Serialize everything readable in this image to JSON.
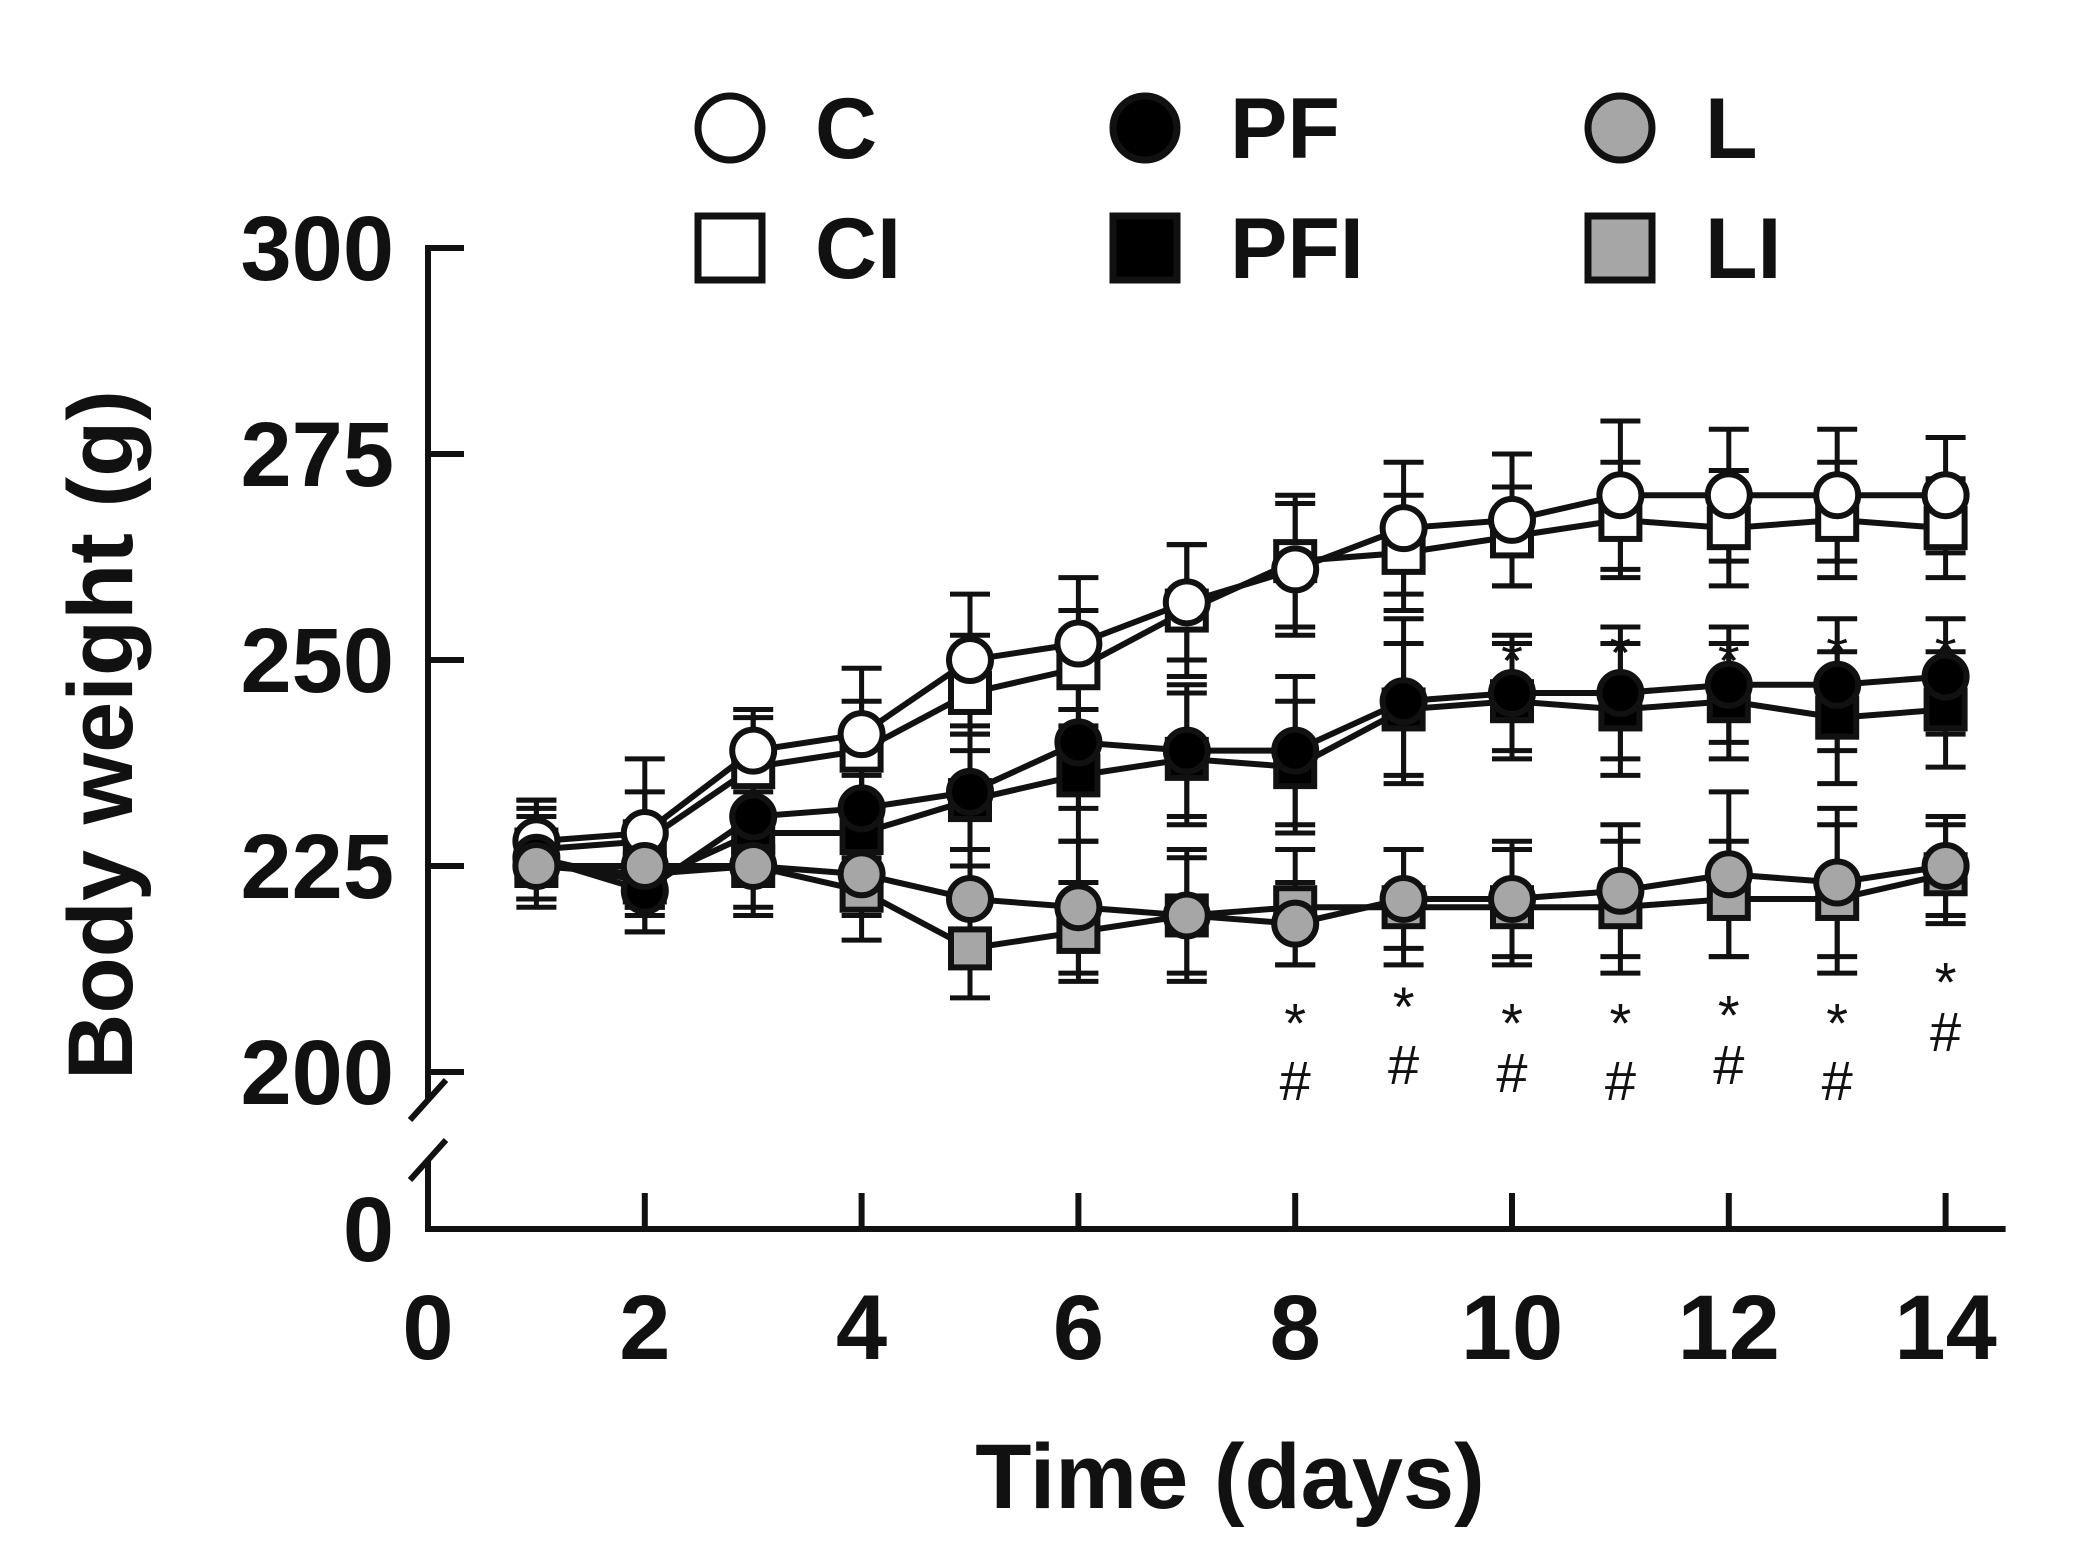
{
  "chart_data": {
    "type": "line",
    "title": "",
    "xlabel": "Time (days)",
    "ylabel": "Body weight (g)",
    "xlim": [
      0,
      14
    ],
    "ylim": [
      200,
      300
    ],
    "y_break": true,
    "x_ticks": [
      {
        "value": 0,
        "label": "0"
      },
      {
        "value": 2,
        "label": "2"
      },
      {
        "value": 4,
        "label": "4"
      },
      {
        "value": 6,
        "label": "6"
      },
      {
        "value": 8,
        "label": "8"
      },
      {
        "value": 10,
        "label": "10"
      },
      {
        "value": 12,
        "label": "12"
      },
      {
        "value": 14,
        "label": "14"
      }
    ],
    "y_ticks": [
      {
        "value": 200,
        "label": "200"
      },
      {
        "value": 225,
        "label": "225"
      },
      {
        "value": 250,
        "label": "250"
      },
      {
        "value": 275,
        "label": "275"
      },
      {
        "value": 300,
        "label": "300"
      }
    ],
    "y_zero_label": "0",
    "x": [
      1,
      2,
      3,
      4,
      5,
      6,
      7,
      8,
      9,
      10,
      11,
      12,
      13,
      14
    ],
    "series": [
      {
        "name": "C",
        "marker": "circle",
        "fill": "#ffffff",
        "values": [
          228,
          229,
          239,
          241,
          250,
          252,
          257,
          261,
          266,
          267,
          270,
          270,
          270,
          270
        ],
        "errors": [
          5,
          9,
          5,
          8,
          8,
          8,
          7,
          8,
          8,
          8,
          9,
          8,
          8,
          7
        ]
      },
      {
        "name": "CI",
        "marker": "square",
        "fill": "#ffffff",
        "values": [
          227,
          228,
          237,
          239,
          246,
          249,
          256,
          262,
          263,
          265,
          267,
          266,
          267,
          266
        ],
        "errors": [
          6,
          6,
          6,
          6,
          7,
          7,
          8,
          8,
          7,
          6,
          7,
          7,
          7,
          6
        ]
      },
      {
        "name": "PF",
        "marker": "circle",
        "fill": "#000000",
        "values": [
          226,
          222,
          231,
          232,
          234,
          240,
          239,
          239,
          245,
          246,
          246,
          247,
          247,
          248
        ],
        "errors": [
          5,
          5,
          6,
          6,
          7,
          8,
          8,
          9,
          10,
          7,
          8,
          7,
          8,
          7
        ]
      },
      {
        "name": "PFI",
        "marker": "square",
        "fill": "#000000",
        "values": [
          226,
          223,
          229,
          229,
          233,
          236,
          238,
          237,
          244,
          245,
          244,
          245,
          243,
          244
        ],
        "errors": [
          6,
          6,
          6,
          7,
          8,
          8,
          8,
          8,
          8,
          7,
          8,
          7,
          8,
          7
        ]
      },
      {
        "name": "L",
        "marker": "circle",
        "fill": "#a6a6a6",
        "values": [
          225,
          225,
          225,
          224,
          221,
          220,
          219,
          218,
          221,
          221,
          222,
          224,
          223,
          225
        ],
        "errors": [
          4,
          5,
          5,
          5,
          6,
          8,
          7,
          5,
          6,
          7,
          8,
          10,
          9,
          6
        ]
      },
      {
        "name": "LI",
        "marker": "square",
        "fill": "#a6a6a6",
        "values": [
          225,
          224,
          225,
          222,
          215,
          217,
          219,
          220,
          220,
          220,
          220,
          221,
          221,
          224
        ],
        "errors": [
          4,
          5,
          6,
          6,
          6,
          6,
          8,
          7,
          7,
          7,
          8,
          7,
          9,
          6
        ]
      }
    ],
    "annotations": [
      {
        "x": 10,
        "y": 250,
        "text": "*"
      },
      {
        "x": 11,
        "y": 251,
        "text": "*"
      },
      {
        "x": 12,
        "y": 250,
        "text": "*"
      },
      {
        "x": 13,
        "y": 251,
        "text": "*"
      },
      {
        "x": 14,
        "y": 251,
        "text": "*"
      },
      {
        "x": 8,
        "y": 206,
        "text": "*"
      },
      {
        "x": 8,
        "y": 199,
        "text": "#"
      },
      {
        "x": 9,
        "y": 208,
        "text": "*"
      },
      {
        "x": 9,
        "y": 201,
        "text": "#"
      },
      {
        "x": 10,
        "y": 206,
        "text": "*"
      },
      {
        "x": 10,
        "y": 200,
        "text": "#"
      },
      {
        "x": 11,
        "y": 206,
        "text": "*"
      },
      {
        "x": 11,
        "y": 199,
        "text": "#"
      },
      {
        "x": 12,
        "y": 207,
        "text": "*"
      },
      {
        "x": 12,
        "y": 201,
        "text": "#"
      },
      {
        "x": 13,
        "y": 206,
        "text": "*"
      },
      {
        "x": 13,
        "y": 199,
        "text": "#"
      },
      {
        "x": 14,
        "y": 211,
        "text": "*"
      },
      {
        "x": 14,
        "y": 205,
        "text": "#"
      }
    ],
    "legend": {
      "position": "top",
      "columns": 3
    }
  }
}
